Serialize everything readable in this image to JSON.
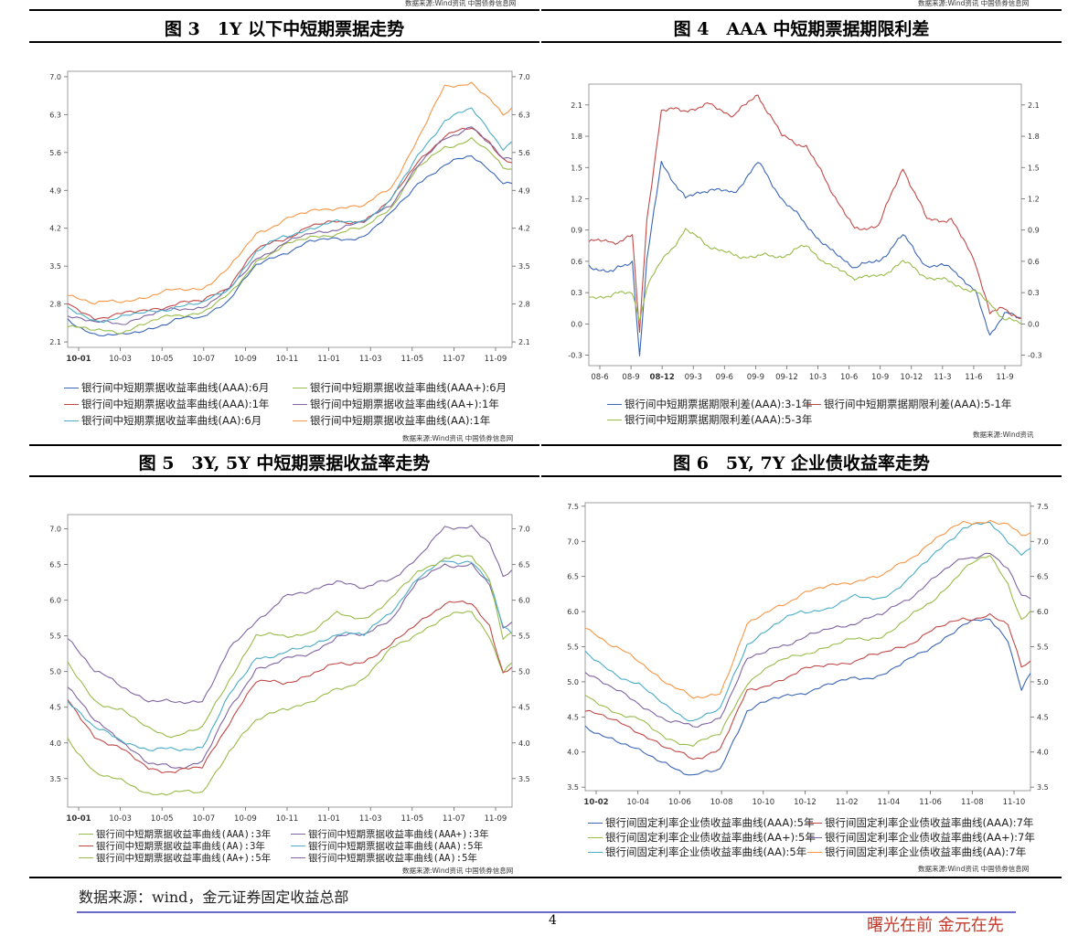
{
  "top_sources": {
    "left": "数据来源:Wind资讯 中国债券信息网",
    "right": "数据来源:Wind资讯 中国债券信息网"
  },
  "panels": {
    "fig3": {
      "title": "图 3　1Y 以下中短期票据走势",
      "source": "数据来源:Wind资讯 中国债券信息网"
    },
    "fig4": {
      "title": "图 4　AAA 中短期票据期限利差",
      "source": "数据来源:Wind资讯"
    },
    "fig5": {
      "title": "图 5　3Y, 5Y 中短期票据收益率走势",
      "source": "数据来源:Wind资讯 中国债券信息网"
    },
    "fig6": {
      "title": "图 6　5Y, 7Y 企业债收益率走势",
      "source": "数据来源:Wind资讯 中国债券信息网"
    }
  },
  "footer": {
    "source": "数据来源：wind，金元证券固定收益总部",
    "page_number": "4",
    "slogan": "曙光在前  金元在先"
  },
  "chart_data": [
    {
      "id": "fig3",
      "type": "line",
      "x_ticks": [
        "10-01",
        "10-03",
        "10-05",
        "10-07",
        "10-09",
        "10-11",
        "11-01",
        "11-03",
        "11-05",
        "11-07",
        "11-09"
      ],
      "x_ticks_bold": [
        "10-01"
      ],
      "y_ticks": [
        "2.1",
        "2.8",
        "3.5",
        "4.2",
        "4.9",
        "5.6",
        "6.3",
        "7.0"
      ],
      "ylim": [
        2.0,
        7.1
      ],
      "n_points": 100,
      "keys": [
        0,
        6,
        12,
        18,
        24,
        30,
        36,
        42,
        48,
        54,
        60,
        66,
        72,
        78,
        84,
        90,
        94,
        97,
        99
      ],
      "series": [
        {
          "name": "银行间中短期票据收益率曲线(AAA):6月",
          "color": "#3b66b5",
          "values": [
            2.5,
            2.25,
            2.2,
            2.35,
            2.5,
            2.55,
            2.9,
            3.5,
            3.75,
            3.95,
            4.0,
            4.05,
            4.45,
            5.05,
            5.35,
            5.55,
            5.3,
            5.05,
            5.0
          ]
        },
        {
          "name": "银行间中短期票据收益率曲线(AAA+):6月",
          "color": "#9abb4a",
          "values": [
            2.4,
            2.3,
            2.3,
            2.45,
            2.6,
            2.65,
            2.95,
            3.6,
            3.85,
            4.05,
            4.1,
            4.2,
            4.6,
            5.3,
            5.7,
            5.85,
            5.6,
            5.3,
            5.3
          ]
        },
        {
          "name": "银行间中短期票据收益率曲线(AAA):1年",
          "color": "#c04a48",
          "values": [
            2.8,
            2.55,
            2.6,
            2.7,
            2.8,
            2.85,
            3.15,
            3.8,
            4.0,
            4.25,
            4.3,
            4.35,
            4.7,
            5.45,
            5.9,
            6.05,
            5.8,
            5.5,
            5.4
          ]
        },
        {
          "name": "银行间中短期票据收益率曲线(AA+):1年",
          "color": "#8064a2",
          "values": [
            2.6,
            2.45,
            2.45,
            2.6,
            2.7,
            2.75,
            3.05,
            3.65,
            3.9,
            4.1,
            4.2,
            4.3,
            4.65,
            5.35,
            5.85,
            6.1,
            5.75,
            5.45,
            5.5
          ]
        },
        {
          "name": "银行间中短期票据收益率曲线(AA):6月",
          "color": "#4bacc6",
          "values": [
            2.7,
            2.5,
            2.55,
            2.65,
            2.75,
            2.8,
            3.1,
            3.75,
            4.05,
            4.2,
            4.3,
            4.35,
            4.7,
            5.55,
            6.2,
            6.4,
            6.0,
            5.7,
            5.8
          ]
        },
        {
          "name": "银行间中短期票据收益率曲线(AA):1年",
          "color": "#f79646",
          "values": [
            3.0,
            2.8,
            2.85,
            2.95,
            3.05,
            3.1,
            3.45,
            4.1,
            4.35,
            4.5,
            4.6,
            4.6,
            4.95,
            5.85,
            6.8,
            6.9,
            6.6,
            6.25,
            6.4
          ]
        }
      ]
    },
    {
      "id": "fig4",
      "type": "line",
      "x_ticks": [
        "08-6",
        "08-9",
        "08-12",
        "09-3",
        "09-6",
        "09-9",
        "09-12",
        "10-3",
        "10-6",
        "10-9",
        "10-12",
        "11-3",
        "11-6",
        "11-9"
      ],
      "x_ticks_bold": [
        "08-12"
      ],
      "y_ticks": [
        "-0.3",
        "0.0",
        "0.3",
        "0.6",
        "0.9",
        "1.2",
        "1.5",
        "1.8",
        "2.1"
      ],
      "ylim": [
        -0.4,
        2.3
      ],
      "n_points": 180,
      "keys": [
        0,
        10,
        18,
        21,
        24,
        30,
        40,
        50,
        60,
        70,
        80,
        90,
        100,
        110,
        120,
        130,
        140,
        150,
        160,
        166,
        172,
        179
      ],
      "series": [
        {
          "name": "银行间中短期票据期限利差(AAA):3-1年",
          "color": "#3b66b5",
          "values": [
            0.55,
            0.5,
            0.6,
            -0.3,
            0.6,
            1.55,
            1.2,
            1.3,
            1.25,
            1.55,
            1.2,
            0.95,
            0.7,
            0.55,
            0.6,
            0.85,
            0.55,
            0.55,
            0.3,
            -0.1,
            0.1,
            0.05
          ]
        },
        {
          "name": "银行间中短期票据期限利差(AAA):5-1年",
          "color": "#c04a48",
          "values": [
            0.8,
            0.78,
            0.85,
            -0.1,
            1.0,
            2.05,
            2.05,
            2.1,
            2.0,
            2.2,
            1.8,
            1.7,
            1.3,
            0.9,
            0.95,
            1.5,
            1.0,
            1.0,
            0.6,
            0.1,
            0.15,
            0.05
          ]
        },
        {
          "name": "银行间中短期票据期限利差(AAA):5-3年",
          "color": "#9abb4a",
          "values": [
            0.25,
            0.28,
            0.3,
            0.05,
            0.35,
            0.6,
            0.9,
            0.75,
            0.65,
            0.65,
            0.65,
            0.75,
            0.55,
            0.45,
            0.45,
            0.6,
            0.45,
            0.4,
            0.3,
            0.2,
            0.05,
            0.0
          ]
        }
      ]
    },
    {
      "id": "fig5",
      "type": "line",
      "x_ticks": [
        "10-01",
        "10-03",
        "10-05",
        "10-07",
        "10-09",
        "10-11",
        "11-01",
        "11-03",
        "11-05",
        "11-07",
        "11-09"
      ],
      "x_ticks_bold": [
        "10-01"
      ],
      "y_ticks": [
        "3.5",
        "4.0",
        "4.5",
        "5.0",
        "5.5",
        "6.0",
        "6.5",
        "7.0"
      ],
      "ylim": [
        3.1,
        7.2
      ],
      "n_points": 100,
      "keys": [
        0,
        6,
        12,
        18,
        24,
        30,
        36,
        42,
        48,
        54,
        60,
        66,
        72,
        78,
        84,
        90,
        94,
        97,
        99
      ],
      "series": [
        {
          "name": "银行间中短期票据收益率曲线(AAA):3年",
          "color": "#9abb4a",
          "values": [
            4.05,
            3.6,
            3.45,
            3.3,
            3.3,
            3.3,
            3.9,
            4.3,
            4.5,
            4.55,
            4.75,
            4.9,
            5.3,
            5.55,
            5.75,
            5.85,
            5.5,
            5.0,
            5.1
          ]
        },
        {
          "name": "银行间中短期票据收益率曲线(AAA+):3年",
          "color": "#8064a2",
          "values": [
            4.8,
            4.3,
            4.05,
            3.7,
            3.65,
            3.75,
            4.45,
            5.05,
            5.15,
            5.25,
            5.5,
            5.5,
            5.75,
            6.25,
            6.5,
            6.5,
            6.2,
            5.6,
            5.7
          ]
        },
        {
          "name": "银行间中短期票据收益率曲线(AA):3年",
          "color": "#c04a48",
          "values": [
            4.6,
            4.1,
            3.9,
            3.65,
            3.6,
            3.65,
            4.3,
            4.85,
            4.85,
            4.95,
            5.1,
            5.15,
            5.35,
            5.7,
            5.95,
            5.95,
            5.65,
            5.0,
            5.05
          ]
        },
        {
          "name": "银行间中短期票据收益率曲线(AAA):5年",
          "color": "#4bacc6",
          "values": [
            4.6,
            4.2,
            4.05,
            3.9,
            3.9,
            3.95,
            4.65,
            5.2,
            5.25,
            5.35,
            5.55,
            5.5,
            5.85,
            6.3,
            6.55,
            6.55,
            6.25,
            5.6,
            5.55
          ]
        },
        {
          "name": "银行间中短期票据收益率曲线(AA+):5年",
          "color": "#9abb4a",
          "values": [
            5.1,
            4.6,
            4.45,
            4.2,
            4.1,
            4.2,
            4.9,
            5.5,
            5.5,
            5.55,
            5.8,
            5.75,
            6.0,
            6.4,
            6.6,
            6.6,
            6.3,
            5.5,
            5.55
          ]
        },
        {
          "name": "银行间中短期票据收益率曲线(AA):5年",
          "color": "#8064a2",
          "values": [
            5.5,
            5.0,
            4.8,
            4.6,
            4.55,
            4.6,
            5.3,
            5.7,
            6.05,
            6.1,
            6.3,
            6.15,
            6.3,
            6.6,
            7.0,
            7.05,
            6.8,
            6.3,
            6.4
          ]
        }
      ]
    },
    {
      "id": "fig6",
      "type": "line",
      "x_ticks": [
        "10-02",
        "10-04",
        "10-06",
        "10-08",
        "10-10",
        "10-12",
        "11-02",
        "11-04",
        "11-06",
        "11-08",
        "11-10"
      ],
      "x_ticks_bold": [
        "10-02"
      ],
      "y_ticks": [
        "3.5",
        "4.0",
        "4.5",
        "5.0",
        "5.5",
        "6.0",
        "6.5",
        "7.0",
        "7.5"
      ],
      "ylim": [
        3.45,
        7.55
      ],
      "n_points": 100,
      "keys": [
        0,
        6,
        12,
        18,
        24,
        30,
        36,
        42,
        48,
        54,
        60,
        66,
        72,
        78,
        84,
        90,
        94,
        97,
        99
      ],
      "series": [
        {
          "name": "银行间固定利率企业债收益率曲线(AAA):5年",
          "color": "#3b66b5",
          "values": [
            4.35,
            4.2,
            4.0,
            3.85,
            3.65,
            3.75,
            4.6,
            4.75,
            4.85,
            4.95,
            5.05,
            5.1,
            5.3,
            5.55,
            5.8,
            5.9,
            5.6,
            4.9,
            5.1
          ]
        },
        {
          "name": "银行间固定利率企业债收益率曲线(AAA):7年",
          "color": "#c04a48",
          "values": [
            4.6,
            4.45,
            4.3,
            4.05,
            3.9,
            4.05,
            4.85,
            5.0,
            5.15,
            5.25,
            5.3,
            5.4,
            5.55,
            5.75,
            5.9,
            5.95,
            5.8,
            5.2,
            5.3
          ]
        },
        {
          "name": "银行间固定利率企业债收益率曲线(AA+):5年",
          "color": "#9abb4a",
          "values": [
            4.8,
            4.6,
            4.45,
            4.2,
            4.1,
            4.25,
            5.0,
            5.25,
            5.4,
            5.5,
            5.6,
            5.65,
            5.9,
            6.2,
            6.6,
            6.8,
            6.4,
            5.9,
            6.0
          ]
        },
        {
          "name": "银行间固定利率企业债收益率曲线(AA+):7年",
          "color": "#8064a2",
          "values": [
            5.15,
            4.9,
            4.7,
            4.45,
            4.35,
            4.5,
            5.3,
            5.5,
            5.6,
            5.75,
            5.85,
            5.95,
            6.2,
            6.5,
            6.75,
            6.85,
            6.6,
            6.2,
            6.2
          ]
        },
        {
          "name": "银行间固定利率企业债收益率曲线(AA):5年",
          "color": "#4bacc6",
          "values": [
            5.4,
            5.15,
            4.95,
            4.65,
            4.45,
            4.6,
            5.55,
            5.8,
            6.0,
            6.05,
            6.2,
            6.2,
            6.45,
            6.85,
            7.2,
            7.25,
            7.0,
            6.85,
            6.9
          ]
        },
        {
          "name": "银行间固定利率企业债收益率曲线(AA):7年",
          "color": "#f79646",
          "values": [
            5.8,
            5.5,
            5.3,
            5.0,
            4.75,
            4.85,
            5.8,
            6.05,
            6.25,
            6.35,
            6.45,
            6.5,
            6.75,
            7.05,
            7.25,
            7.3,
            7.25,
            7.05,
            7.1
          ]
        }
      ]
    }
  ]
}
